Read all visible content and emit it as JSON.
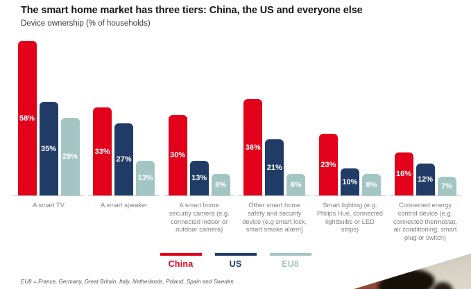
{
  "header": {
    "title": "The smart home market has three tiers: China, the US and everyone else",
    "subtitle": "Device ownership (% of households)"
  },
  "footnote": "EU8 = France, Germany, Great Britain, Italy, Netherlands, Poland, Spain and Sweden",
  "colors": {
    "china_red": "#e2001b",
    "us_navy": "#203c66",
    "eu8_teal": "#a3c6c4",
    "axis_line": "#c9c9c9",
    "category_label": "#7f7f7f",
    "value_label": "#ffffff"
  },
  "chart_data": {
    "type": "bar",
    "title": "The smart home market has three tiers: China, the US and everyone else",
    "subtitle": "Device ownership (% of households)",
    "ylabel": "Device ownership (% of households)",
    "xlabel": "",
    "ylim": [
      0,
      60
    ],
    "grid": false,
    "legend_position": "bottom",
    "value_suffix": "%",
    "categories": [
      "A smart TV",
      "A smart speaker",
      "A smart home\nsecurity camera (e.g.\nconnected indoor or\noutdoor camera)",
      "Other smart home\nsafety and security\ndevice (e.g smart lock,\nsmart smoke alarm)",
      "Smart lighting (e.g.\nPhilips Hue, connected\nlightbulbs or LED\nstrips)",
      "Connected energy\ncontrol device (e.g.\nconnected thermostat,\nair conditioning, smart\nplug or switch)"
    ],
    "series": [
      {
        "name": "China",
        "color": "#e2001b",
        "values": [
          58,
          33,
          30,
          36,
          23,
          16
        ]
      },
      {
        "name": "US",
        "color": "#203c66",
        "values": [
          35,
          27,
          13,
          21,
          10,
          12
        ]
      },
      {
        "name": "EU8",
        "color": "#a3c6c4",
        "values": [
          29,
          13,
          8,
          8,
          8,
          7
        ]
      }
    ]
  }
}
